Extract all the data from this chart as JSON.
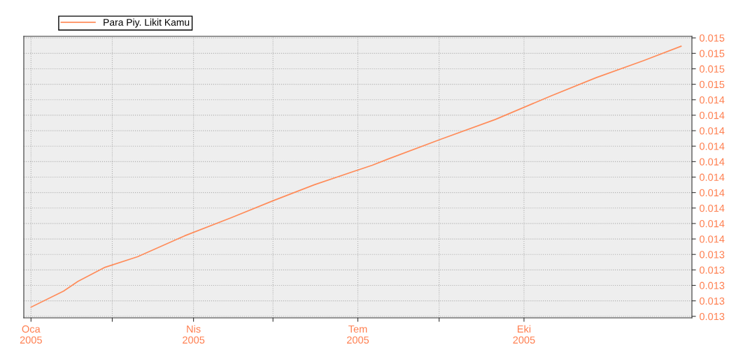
{
  "chart_data": {
    "type": "line",
    "x": [
      "2005-01-01",
      "2005-01-19",
      "2005-01-27",
      "2005-02-11",
      "2005-03-01",
      "2005-03-27",
      "2005-04-22",
      "2005-05-15",
      "2005-06-07",
      "2005-07-09",
      "2005-07-18",
      "2005-08-16",
      "2005-09-15",
      "2005-10-16",
      "2005-11-10",
      "2005-12-06",
      "2005-12-27"
    ],
    "series": [
      {
        "name": "Para Piy. Likit Kamu",
        "color": "#ff8c5a",
        "values": [
          0.013059,
          0.013163,
          0.013226,
          0.013317,
          0.013385,
          0.01352,
          0.013638,
          0.013747,
          0.013851,
          0.013977,
          0.014018,
          0.014145,
          0.014272,
          0.014425,
          0.014543,
          0.014652,
          0.014746
        ]
      }
    ],
    "xlim": [
      "2004-12-28",
      "2006-01-02"
    ],
    "xticks": [
      {
        "value": "2005-01-01",
        "label": "Oca\n2005"
      },
      {
        "value": "2005-02-15",
        "label": null
      },
      {
        "value": "2005-04-01",
        "label": "Nis\n2005"
      },
      {
        "value": "2005-05-15",
        "label": null
      },
      {
        "value": "2005-07-01",
        "label": "Tem\n2005"
      },
      {
        "value": "2005-08-15",
        "label": null
      },
      {
        "value": "2005-10-01",
        "label": "Eki\n2005"
      }
    ],
    "ylim": [
      0.01299,
      0.01481
    ],
    "yticks": [
      {
        "value": 0.013,
        "label": "0.013"
      },
      {
        "value": 0.0131,
        "label": "0.013"
      },
      {
        "value": 0.0132,
        "label": "0.013"
      },
      {
        "value": 0.0133,
        "label": "0.013"
      },
      {
        "value": 0.0134,
        "label": "0.013"
      },
      {
        "value": 0.0135,
        "label": "0.014"
      },
      {
        "value": 0.0136,
        "label": "0.014"
      },
      {
        "value": 0.0137,
        "label": "0.014"
      },
      {
        "value": 0.0138,
        "label": "0.014"
      },
      {
        "value": 0.0139,
        "label": "0.014"
      },
      {
        "value": 0.014,
        "label": "0.014"
      },
      {
        "value": 0.0141,
        "label": "0.014"
      },
      {
        "value": 0.0142,
        "label": "0.014"
      },
      {
        "value": 0.0143,
        "label": "0.014"
      },
      {
        "value": 0.0144,
        "label": "0.014"
      },
      {
        "value": 0.0145,
        "label": "0.015"
      },
      {
        "value": 0.0146,
        "label": "0.015"
      },
      {
        "value": 0.0147,
        "label": "0.015"
      },
      {
        "value": 0.0148,
        "label": "0.015"
      }
    ],
    "grid": true,
    "legend": "top left",
    "line_style": "solid"
  }
}
